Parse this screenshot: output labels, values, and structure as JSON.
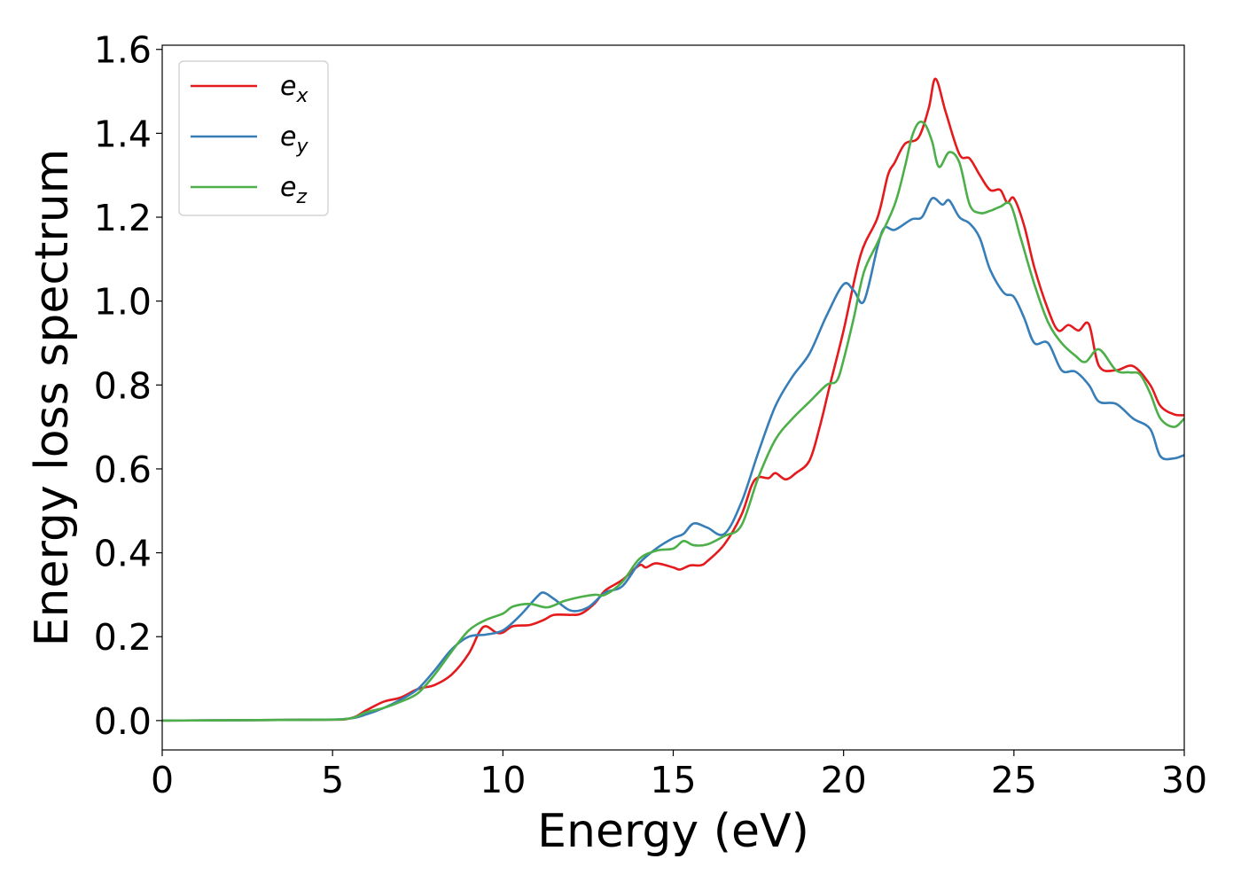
{
  "chart_data": {
    "type": "line",
    "xlabel": "Energy (eV)",
    "ylabel": "Energy loss spectrum",
    "xlim": [
      0,
      30
    ],
    "ylim": [
      -0.07,
      1.61
    ],
    "xticks": [
      0,
      5,
      10,
      15,
      20,
      25,
      30
    ],
    "yticks": [
      0.0,
      0.2,
      0.4,
      0.6,
      0.8,
      1.0,
      1.2,
      1.4,
      1.6
    ],
    "x_tick_labels": [
      "0",
      "5",
      "10",
      "15",
      "20",
      "25",
      "30"
    ],
    "y_tick_labels": [
      "0.0",
      "0.2",
      "0.4",
      "0.6",
      "0.8",
      "1.0",
      "1.2",
      "1.4",
      "1.6"
    ],
    "grid": false,
    "legend_position": "top-left",
    "series": [
      {
        "name": "e",
        "subscript": "x",
        "color": "#e41a1c",
        "points": [
          [
            0,
            0.0
          ],
          [
            4.5,
            0.002
          ],
          [
            5.5,
            0.005
          ],
          [
            6,
            0.025
          ],
          [
            6.5,
            0.045
          ],
          [
            7,
            0.055
          ],
          [
            7.5,
            0.075
          ],
          [
            8,
            0.085
          ],
          [
            8.5,
            0.11
          ],
          [
            9,
            0.16
          ],
          [
            9.3,
            0.21
          ],
          [
            9.5,
            0.225
          ],
          [
            9.8,
            0.21
          ],
          [
            10,
            0.21
          ],
          [
            10.3,
            0.225
          ],
          [
            10.8,
            0.228
          ],
          [
            11.2,
            0.24
          ],
          [
            11.5,
            0.252
          ],
          [
            12,
            0.252
          ],
          [
            12.3,
            0.255
          ],
          [
            12.7,
            0.28
          ],
          [
            13,
            0.31
          ],
          [
            13.5,
            0.335
          ],
          [
            14,
            0.37
          ],
          [
            14.2,
            0.365
          ],
          [
            14.5,
            0.375
          ],
          [
            15,
            0.365
          ],
          [
            15.2,
            0.36
          ],
          [
            15.5,
            0.37
          ],
          [
            15.8,
            0.37
          ],
          [
            16,
            0.38
          ],
          [
            16.5,
            0.42
          ],
          [
            17,
            0.49
          ],
          [
            17.3,
            0.56
          ],
          [
            17.5,
            0.58
          ],
          [
            17.8,
            0.578
          ],
          [
            18,
            0.59
          ],
          [
            18.3,
            0.575
          ],
          [
            18.6,
            0.59
          ],
          [
            19,
            0.62
          ],
          [
            19.3,
            0.7
          ],
          [
            19.6,
            0.8
          ],
          [
            20,
            0.93
          ],
          [
            20.5,
            1.11
          ],
          [
            21,
            1.2
          ],
          [
            21.3,
            1.3
          ],
          [
            21.5,
            1.33
          ],
          [
            21.8,
            1.375
          ],
          [
            22.2,
            1.39
          ],
          [
            22.5,
            1.46
          ],
          [
            22.7,
            1.53
          ],
          [
            23,
            1.45
          ],
          [
            23.4,
            1.35
          ],
          [
            23.7,
            1.34
          ],
          [
            24,
            1.3
          ],
          [
            24.3,
            1.265
          ],
          [
            24.6,
            1.265
          ],
          [
            24.8,
            1.235
          ],
          [
            25,
            1.245
          ],
          [
            25.3,
            1.18
          ],
          [
            25.6,
            1.08
          ],
          [
            26,
            0.98
          ],
          [
            26.3,
            0.93
          ],
          [
            26.6,
            0.943
          ],
          [
            26.9,
            0.93
          ],
          [
            27.2,
            0.945
          ],
          [
            27.5,
            0.845
          ],
          [
            28,
            0.835
          ],
          [
            28.5,
            0.845
          ],
          [
            29,
            0.8
          ],
          [
            29.3,
            0.75
          ],
          [
            29.7,
            0.73
          ],
          [
            30,
            0.728
          ]
        ]
      },
      {
        "name": "e",
        "subscript": "y",
        "color": "#377eb8",
        "points": [
          [
            0,
            0.0
          ],
          [
            4.5,
            0.002
          ],
          [
            5.5,
            0.005
          ],
          [
            6,
            0.015
          ],
          [
            6.5,
            0.03
          ],
          [
            7,
            0.05
          ],
          [
            7.5,
            0.075
          ],
          [
            8,
            0.12
          ],
          [
            8.5,
            0.17
          ],
          [
            9,
            0.2
          ],
          [
            9.5,
            0.205
          ],
          [
            10,
            0.215
          ],
          [
            10.5,
            0.25
          ],
          [
            11,
            0.295
          ],
          [
            11.2,
            0.305
          ],
          [
            11.5,
            0.29
          ],
          [
            12,
            0.262
          ],
          [
            12.5,
            0.27
          ],
          [
            13,
            0.305
          ],
          [
            13.5,
            0.32
          ],
          [
            14,
            0.375
          ],
          [
            14.5,
            0.41
          ],
          [
            15,
            0.435
          ],
          [
            15.3,
            0.445
          ],
          [
            15.6,
            0.47
          ],
          [
            16,
            0.46
          ],
          [
            16.5,
            0.445
          ],
          [
            17,
            0.52
          ],
          [
            17.5,
            0.64
          ],
          [
            18,
            0.75
          ],
          [
            18.5,
            0.82
          ],
          [
            19,
            0.875
          ],
          [
            19.5,
            0.965
          ],
          [
            20,
            1.04
          ],
          [
            20.3,
            1.025
          ],
          [
            20.6,
            1.0
          ],
          [
            21,
            1.13
          ],
          [
            21.2,
            1.175
          ],
          [
            21.5,
            1.17
          ],
          [
            22,
            1.195
          ],
          [
            22.3,
            1.2
          ],
          [
            22.6,
            1.245
          ],
          [
            22.9,
            1.23
          ],
          [
            23.1,
            1.24
          ],
          [
            23.4,
            1.2
          ],
          [
            23.7,
            1.185
          ],
          [
            24,
            1.15
          ],
          [
            24.3,
            1.075
          ],
          [
            24.7,
            1.02
          ],
          [
            25,
            1.01
          ],
          [
            25.3,
            0.96
          ],
          [
            25.6,
            0.9
          ],
          [
            26,
            0.9
          ],
          [
            26.4,
            0.835
          ],
          [
            26.8,
            0.832
          ],
          [
            27.2,
            0.8
          ],
          [
            27.5,
            0.76
          ],
          [
            28,
            0.755
          ],
          [
            28.5,
            0.72
          ],
          [
            29,
            0.695
          ],
          [
            29.3,
            0.63
          ],
          [
            29.7,
            0.625
          ],
          [
            30,
            0.633
          ]
        ]
      },
      {
        "name": "e",
        "subscript": "z",
        "color": "#4daf4a",
        "points": [
          [
            0,
            0.0
          ],
          [
            4.5,
            0.002
          ],
          [
            5.5,
            0.005
          ],
          [
            6,
            0.02
          ],
          [
            6.5,
            0.03
          ],
          [
            7,
            0.045
          ],
          [
            7.5,
            0.065
          ],
          [
            8,
            0.11
          ],
          [
            8.5,
            0.165
          ],
          [
            9,
            0.215
          ],
          [
            9.5,
            0.24
          ],
          [
            10,
            0.255
          ],
          [
            10.3,
            0.272
          ],
          [
            10.8,
            0.278
          ],
          [
            11.3,
            0.27
          ],
          [
            11.8,
            0.285
          ],
          [
            12.3,
            0.295
          ],
          [
            12.7,
            0.3
          ],
          [
            13,
            0.3
          ],
          [
            13.5,
            0.33
          ],
          [
            14,
            0.385
          ],
          [
            14.5,
            0.405
          ],
          [
            15,
            0.41
          ],
          [
            15.3,
            0.428
          ],
          [
            15.6,
            0.418
          ],
          [
            16,
            0.42
          ],
          [
            16.5,
            0.44
          ],
          [
            17,
            0.465
          ],
          [
            17.5,
            0.58
          ],
          [
            18,
            0.67
          ],
          [
            18.5,
            0.72
          ],
          [
            19,
            0.76
          ],
          [
            19.5,
            0.8
          ],
          [
            19.8,
            0.81
          ],
          [
            20,
            0.86
          ],
          [
            20.3,
            0.96
          ],
          [
            20.6,
            1.07
          ],
          [
            21,
            1.14
          ],
          [
            21.5,
            1.23
          ],
          [
            21.8,
            1.32
          ],
          [
            22,
            1.39
          ],
          [
            22.2,
            1.425
          ],
          [
            22.4,
            1.42
          ],
          [
            22.6,
            1.38
          ],
          [
            22.8,
            1.32
          ],
          [
            23.1,
            1.355
          ],
          [
            23.4,
            1.33
          ],
          [
            23.7,
            1.23
          ],
          [
            24,
            1.21
          ],
          [
            24.3,
            1.215
          ],
          [
            24.6,
            1.225
          ],
          [
            24.9,
            1.23
          ],
          [
            25.2,
            1.15
          ],
          [
            25.6,
            1.04
          ],
          [
            26,
            0.95
          ],
          [
            26.4,
            0.9
          ],
          [
            26.8,
            0.87
          ],
          [
            27.1,
            0.855
          ],
          [
            27.5,
            0.885
          ],
          [
            28,
            0.835
          ],
          [
            28.4,
            0.83
          ],
          [
            28.7,
            0.825
          ],
          [
            29,
            0.78
          ],
          [
            29.3,
            0.72
          ],
          [
            29.7,
            0.7
          ],
          [
            30,
            0.72
          ]
        ]
      }
    ]
  }
}
